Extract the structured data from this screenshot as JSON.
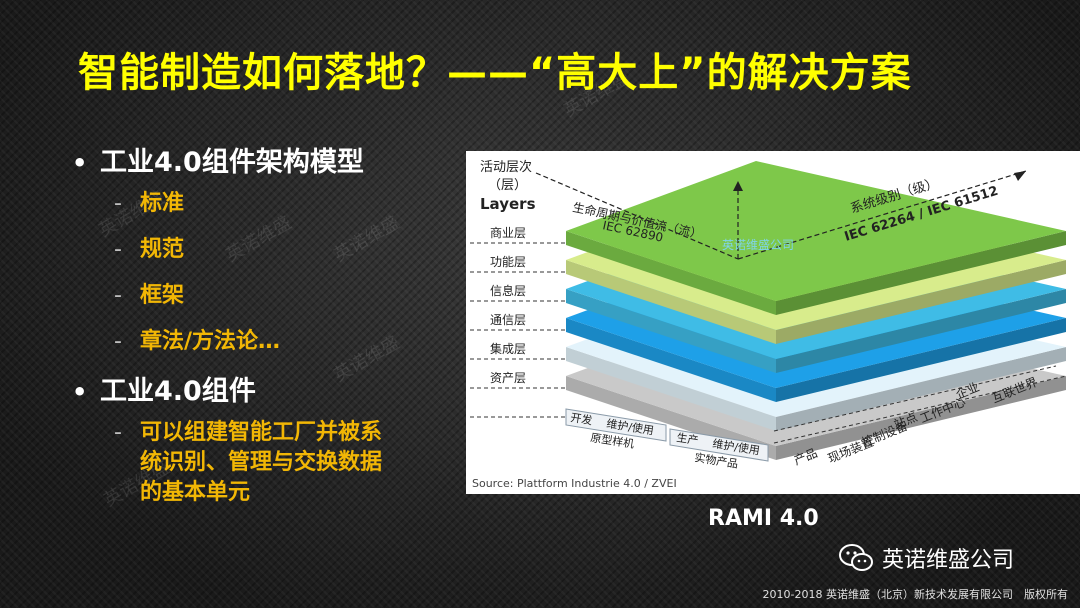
{
  "title": "智能制造如何落地？——“高大上”的解决方案",
  "bullets": [
    {
      "label": "工业4.0组件架构模型",
      "subs": [
        "标准",
        "规范",
        "框架",
        "章法/方法论…"
      ]
    },
    {
      "label": "工业4.0组件",
      "subs": [
        "可以组建智能工厂并被系\n统识别、管理与交换数据\n的基本单元"
      ]
    }
  ],
  "figure": {
    "layers_title_1": "活动层次",
    "layers_title_2": "（层）",
    "layers_title_3": "Layers",
    "layers": [
      "商业层",
      "功能层",
      "信息层",
      "通信层",
      "集成层",
      "资产层"
    ],
    "lifecycle_label": "生命周期与价值流（流）",
    "lifecycle_std": "IEC 62890",
    "hierarchy_label": "系统级别（级）",
    "hierarchy_std": "IEC 62264 / IEC 61512",
    "watermark_cube": "英诺维盛公司",
    "lifecycle_row1": [
      "开发",
      "维护/使用"
    ],
    "lifecycle_row1_sub": "原型样机",
    "lifecycle_row2": [
      "生产",
      "维护/使用"
    ],
    "lifecycle_row2_sub": "实物产品",
    "hierarchy_items": [
      "互联世界",
      "企业",
      "工作中心",
      "站点",
      "控制设备",
      "现场装置",
      "产品"
    ],
    "source": "Source: Plattform Industrie 4.0 / ZVEI",
    "layer_colors": [
      "#7ec84a",
      "#d8ec8c",
      "#3fbce6",
      "#1ea0e8",
      "#e3f3fb",
      "#c9c9c9"
    ]
  },
  "caption": "RAMI 4.0",
  "brand_name": "英诺维盛公司",
  "copyright": "2010-2018 英诺维盛（北京）新技术发展有限公司　版权所有",
  "watermarks": [
    "英诺维盛",
    "英诺维盛",
    "英诺维盛",
    "英诺维盛",
    "英诺维盛",
    "英诺维盛"
  ]
}
